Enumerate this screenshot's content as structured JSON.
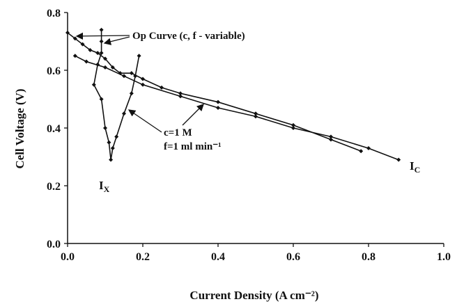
{
  "chart_data": {
    "type": "line",
    "x_label": "Current Density (A cm⁻²)",
    "y_label": "Cell Voltage (V)",
    "xlim": [
      0,
      1
    ],
    "ylim": [
      0,
      0.8
    ],
    "xticks": [
      {
        "value": 0,
        "label": "0.0"
      },
      0.2,
      0.4,
      0.6,
      0.8,
      {
        "value": 1,
        "label": "1.0"
      }
    ],
    "yticks": [
      {
        "value": 0,
        "label": "0.0"
      },
      0.2,
      0.4,
      0.6,
      0.8
    ],
    "grid": false,
    "series": [
      {
        "color": "#111111",
        "x": [
          0.0,
          0.02,
          0.04,
          0.06,
          0.08,
          0.1,
          0.12,
          0.14,
          0.17,
          0.2,
          0.25,
          0.3,
          0.4,
          0.5,
          0.6,
          0.7,
          0.78
        ],
        "values": [
          0.73,
          0.71,
          0.69,
          0.67,
          0.66,
          0.64,
          0.61,
          0.59,
          0.59,
          0.57,
          0.54,
          0.52,
          0.49,
          0.45,
          0.41,
          0.36,
          0.32
        ]
      },
      {
        "color": "#111111",
        "x": [
          0.02,
          0.05,
          0.1,
          0.15,
          0.2,
          0.3,
          0.4,
          0.5,
          0.6,
          0.7,
          0.8,
          0.88
        ],
        "values": [
          0.65,
          0.63,
          0.61,
          0.58,
          0.55,
          0.51,
          0.47,
          0.44,
          0.4,
          0.37,
          0.33,
          0.29
        ]
      },
      {
        "color": "#111111",
        "x": [
          0.09,
          0.09,
          0.09,
          0.08,
          0.07,
          0.09,
          0.1,
          0.11,
          0.115,
          0.12,
          0.13,
          0.15,
          0.17,
          0.18,
          0.19
        ],
        "values": [
          0.74,
          0.7,
          0.66,
          0.62,
          0.55,
          0.5,
          0.4,
          0.35,
          0.29,
          0.33,
          0.37,
          0.45,
          0.52,
          0.58,
          0.65
        ]
      }
    ],
    "annotations": {
      "op_curve": "Op Curve (c, f - variable)",
      "conc": "c=1 M",
      "flow": "f=1 ml min⁻¹",
      "ix": {
        "text": "I",
        "sub": "X"
      },
      "ic": {
        "text": "I",
        "sub": "C"
      }
    }
  }
}
